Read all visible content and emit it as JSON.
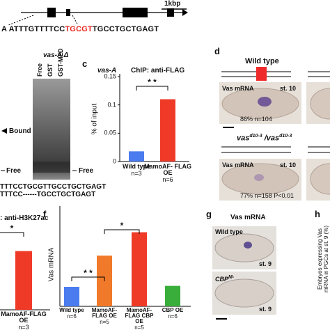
{
  "gene_diagram": {
    "scale": "1kbp",
    "seq_before": "A  ATTTGTTTTCC",
    "seq_site": "TGCGT",
    "seq_after": "TGCCTGCTGAGT"
  },
  "gel": {
    "construct": "vas-A Δ",
    "lanes": [
      "Free",
      "GST",
      "GST-MZD"
    ],
    "bound": "Bound",
    "free_markers": [
      "Free",
      "Free"
    ],
    "seq_wt": "TTTCCTGCGTTGCCTGCTGAGT",
    "seq_deletion": "TTTCC------TGCCTGCTGAGT"
  },
  "panel_d": {
    "label": "d",
    "genotype_1": "Wild type",
    "genotype_2": [
      "vas",
      "d10-3",
      " /vas",
      "d10-3"
    ],
    "embryos": [
      {
        "stain": "Vas mRNA",
        "stage": "st. 10",
        "result": "86% n=104"
      },
      {
        "stain": "Vas mRNA",
        "stage": "st. 10",
        "result": "77% n=158 P<0.01"
      }
    ]
  },
  "panel_g": {
    "label": "g",
    "stain": "Vas mRNA",
    "embryos": [
      {
        "genotype": [
          "Wild type"
        ],
        "stage": "st. 9"
      },
      {
        "genotype": [
          "CBP",
          "M-"
        ],
        "stage": "st. 9"
      }
    ]
  },
  "panel_h": {
    "label": "h",
    "ylabel": "Embryos expressing Vas mRNA in PGCs at st. 9 (%)"
  },
  "chart_data": [
    {
      "type": "bar",
      "panel": "c",
      "subtitle": "vas-A",
      "title": "ChIP: anti-FLAG",
      "ylabel": "% of input",
      "categories": [
        "Wild type",
        "MamoAF- FLAG OE"
      ],
      "n_labels": [
        "n=3",
        "n=6"
      ],
      "values": [
        0.018,
        0.11
      ],
      "colors": [
        "#4a7bef",
        "#ef3a28"
      ],
      "ylim": [
        0,
        0.15
      ],
      "yticks": [
        0,
        0.05,
        0.1,
        0.15
      ],
      "significance": [
        "* *"
      ]
    },
    {
      "type": "bar",
      "title": ": anti-H3K27ac",
      "categories": [
        "MamoAF-FLAG OE"
      ],
      "n_labels": [
        "n=3"
      ],
      "values": [
        2.7
      ],
      "colors": [
        "#ef3a28"
      ],
      "ylim": [
        0,
        4
      ],
      "significance": [
        "*"
      ]
    },
    {
      "type": "bar",
      "panel": "f",
      "ylabel": "Vas mRNA",
      "categories": [
        "Wild type",
        "MamoAF-FLAG OE",
        "MamoAF-FLAG CBP OE",
        "CBP OE"
      ],
      "n_labels": [
        "n=6",
        "n=5",
        "n=5",
        "n=6"
      ],
      "values": [
        1,
        2.6,
        3.8,
        1.05
      ],
      "colors": [
        "#4a7bef",
        "#f07a2a",
        "#ef3a28",
        "#3aae3a"
      ],
      "ylim": [
        0,
        5
      ],
      "significance": [
        "* *",
        "*"
      ]
    }
  ]
}
